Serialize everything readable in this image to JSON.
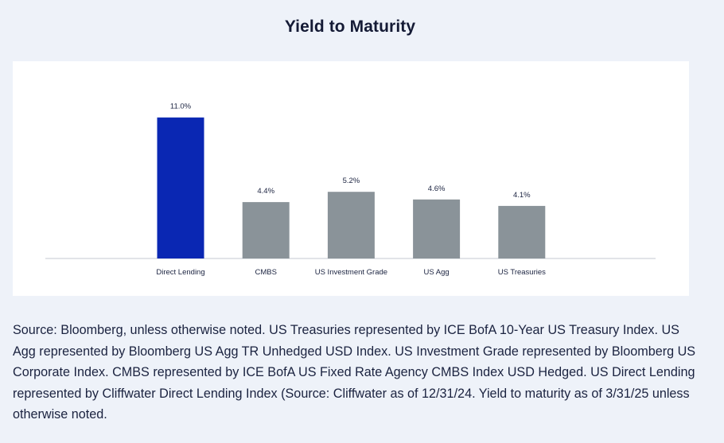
{
  "title": "Yield to Maturity",
  "chart_data": {
    "type": "bar",
    "title": "Yield to Maturity",
    "categories": [
      "Direct Lending",
      "CMBS",
      "US Investment Grade",
      "US Agg",
      "US Treasuries"
    ],
    "values": [
      11.0,
      4.4,
      5.2,
      4.6,
      4.1
    ],
    "value_labels": [
      "11.0%",
      "4.4%",
      "5.2%",
      "4.6%",
      "4.1%"
    ],
    "unit": "%",
    "xlabel": "",
    "ylabel": "",
    "ylim": [
      0,
      12.5
    ],
    "grid": false,
    "legend": "none",
    "colors": [
      "#0a27b3",
      "#8a9399",
      "#8a9399",
      "#8a9399",
      "#8a9399"
    ],
    "baseline_color": "#d9dce0"
  },
  "footnote": "Source: Bloomberg, unless otherwise noted. US Treasuries represented by ICE BofA 10-Year US Treasury Index. US Agg represented by Bloomberg US Agg TR Unhedged USD Index. US Investment Grade represented by Bloomberg US Corporate Index. CMBS represented by ICE BofA US Fixed Rate Agency CMBS Index USD Hedged. US Direct Lending represented by Cliffwater Direct Lending Index (Source: Cliffwater as of 12/31/24. Yield to maturity as of 3/31/25 unless otherwise noted."
}
